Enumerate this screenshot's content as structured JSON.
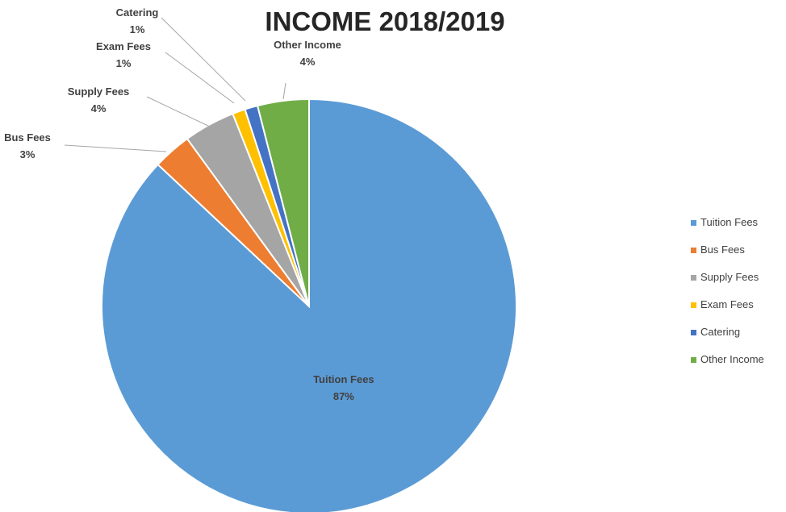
{
  "chart_data": {
    "type": "pie",
    "title": "INCOME 2018/2019",
    "slices": [
      {
        "label": "Tuition Fees",
        "value": 87,
        "value_label": "87%",
        "color": "#5b9bd5"
      },
      {
        "label": "Bus Fees",
        "value": 3,
        "value_label": "3%",
        "color": "#ed7d31"
      },
      {
        "label": "Supply Fees",
        "value": 4,
        "value_label": "4%",
        "color": "#a5a5a5"
      },
      {
        "label": "Exam Fees",
        "value": 1,
        "value_label": "1%",
        "color": "#ffc000"
      },
      {
        "label": "Catering",
        "value": 1,
        "value_label": "1%",
        "color": "#4472c4"
      },
      {
        "label": "Other Income",
        "value": 4,
        "value_label": "4%",
        "color": "#70ad47"
      }
    ],
    "legend_position": "right"
  }
}
